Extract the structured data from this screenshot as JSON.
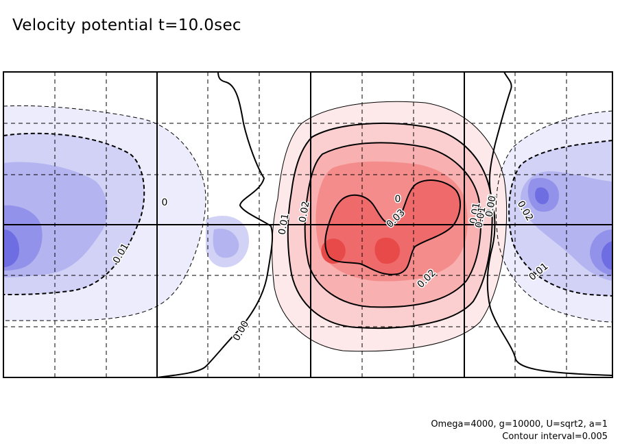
{
  "title": "Velocity potential t=10.0sec",
  "notes": {
    "params": "Omega=4000, g=10000, U=sqrt2, a=1",
    "interval": "Contour interval=0.005"
  },
  "colors": {
    "positive_shades": [
      "#fde9e9",
      "#fbcfcf",
      "#f8b0b0",
      "#f48c8c",
      "#ef6a6a",
      "#e84a4a"
    ],
    "negative_shades": [
      "#ececfc",
      "#d2d2f6",
      "#b4b4f0",
      "#9292ea",
      "#6e6ee2"
    ],
    "frame": "#000000"
  },
  "chart_data": {
    "type": "contour",
    "title": "Velocity potential t=10.0sec",
    "contour_interval": 0.005,
    "grid": "dashed",
    "fill": "positive red, negative blue",
    "contour_labels": [
      {
        "text": "0"
      },
      {
        "text": "0.01"
      },
      {
        "text": "0.01"
      },
      {
        "text": "0.02"
      },
      {
        "text": "0.00"
      },
      {
        "text": "0.01"
      },
      {
        "text": "0.02"
      },
      {
        "text": "0.03"
      },
      {
        "text": "0.02"
      },
      {
        "text": "0"
      },
      {
        "text": "0.01"
      },
      {
        "text": "0.00"
      },
      {
        "text": "0.02"
      },
      {
        "text": "0.01"
      }
    ]
  }
}
